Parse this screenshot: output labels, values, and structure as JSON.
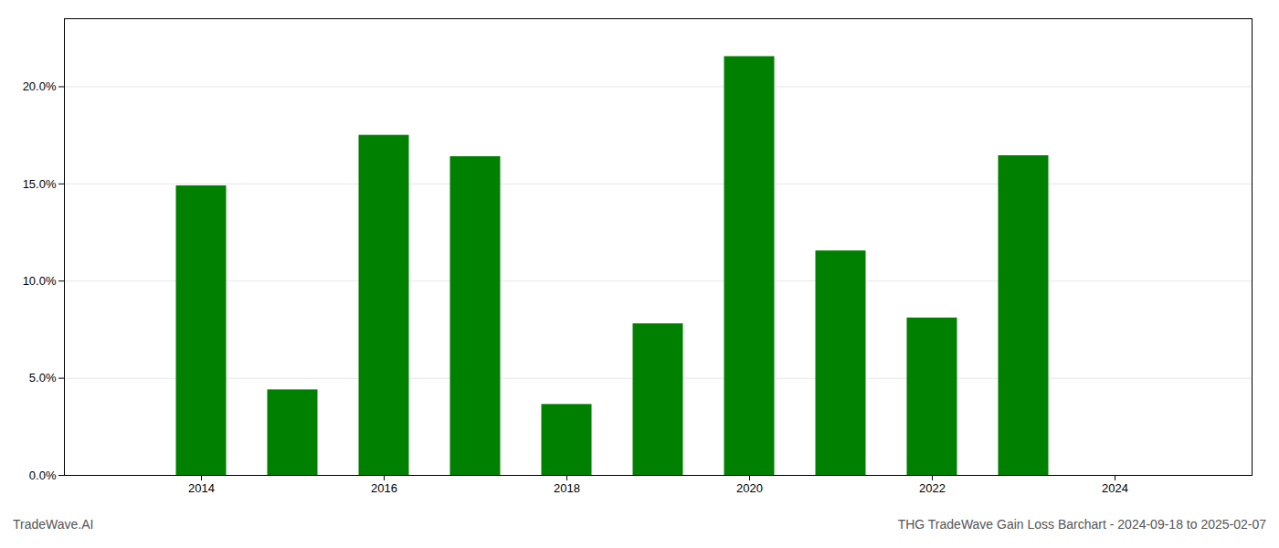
{
  "chart_data": {
    "type": "bar",
    "x": [
      2014,
      2015,
      2016,
      2017,
      2018,
      2019,
      2020,
      2021,
      2022,
      2023
    ],
    "values": [
      0.149,
      0.044,
      0.175,
      0.164,
      0.0365,
      0.078,
      0.2155,
      0.1155,
      0.081,
      0.1645
    ],
    "color": "#008000",
    "xlim": [
      2012.5,
      2025.5
    ],
    "xticks": [
      2014,
      2016,
      2018,
      2020,
      2022,
      2024
    ],
    "ylim": [
      0,
      0.235
    ],
    "yticks": [
      {
        "value": 0.0,
        "label": "0.0%"
      },
      {
        "value": 0.05,
        "label": "5.0%"
      },
      {
        "value": 0.1,
        "label": "10.0%"
      },
      {
        "value": 0.15,
        "label": "15.0%"
      },
      {
        "value": 0.2,
        "label": "20.0%"
      }
    ],
    "grid": true,
    "annotations": [
      "TradeWave.AI",
      "THG TradeWave Gain Loss Barchart - 2024-09-18 to 2025-02-07"
    ]
  }
}
